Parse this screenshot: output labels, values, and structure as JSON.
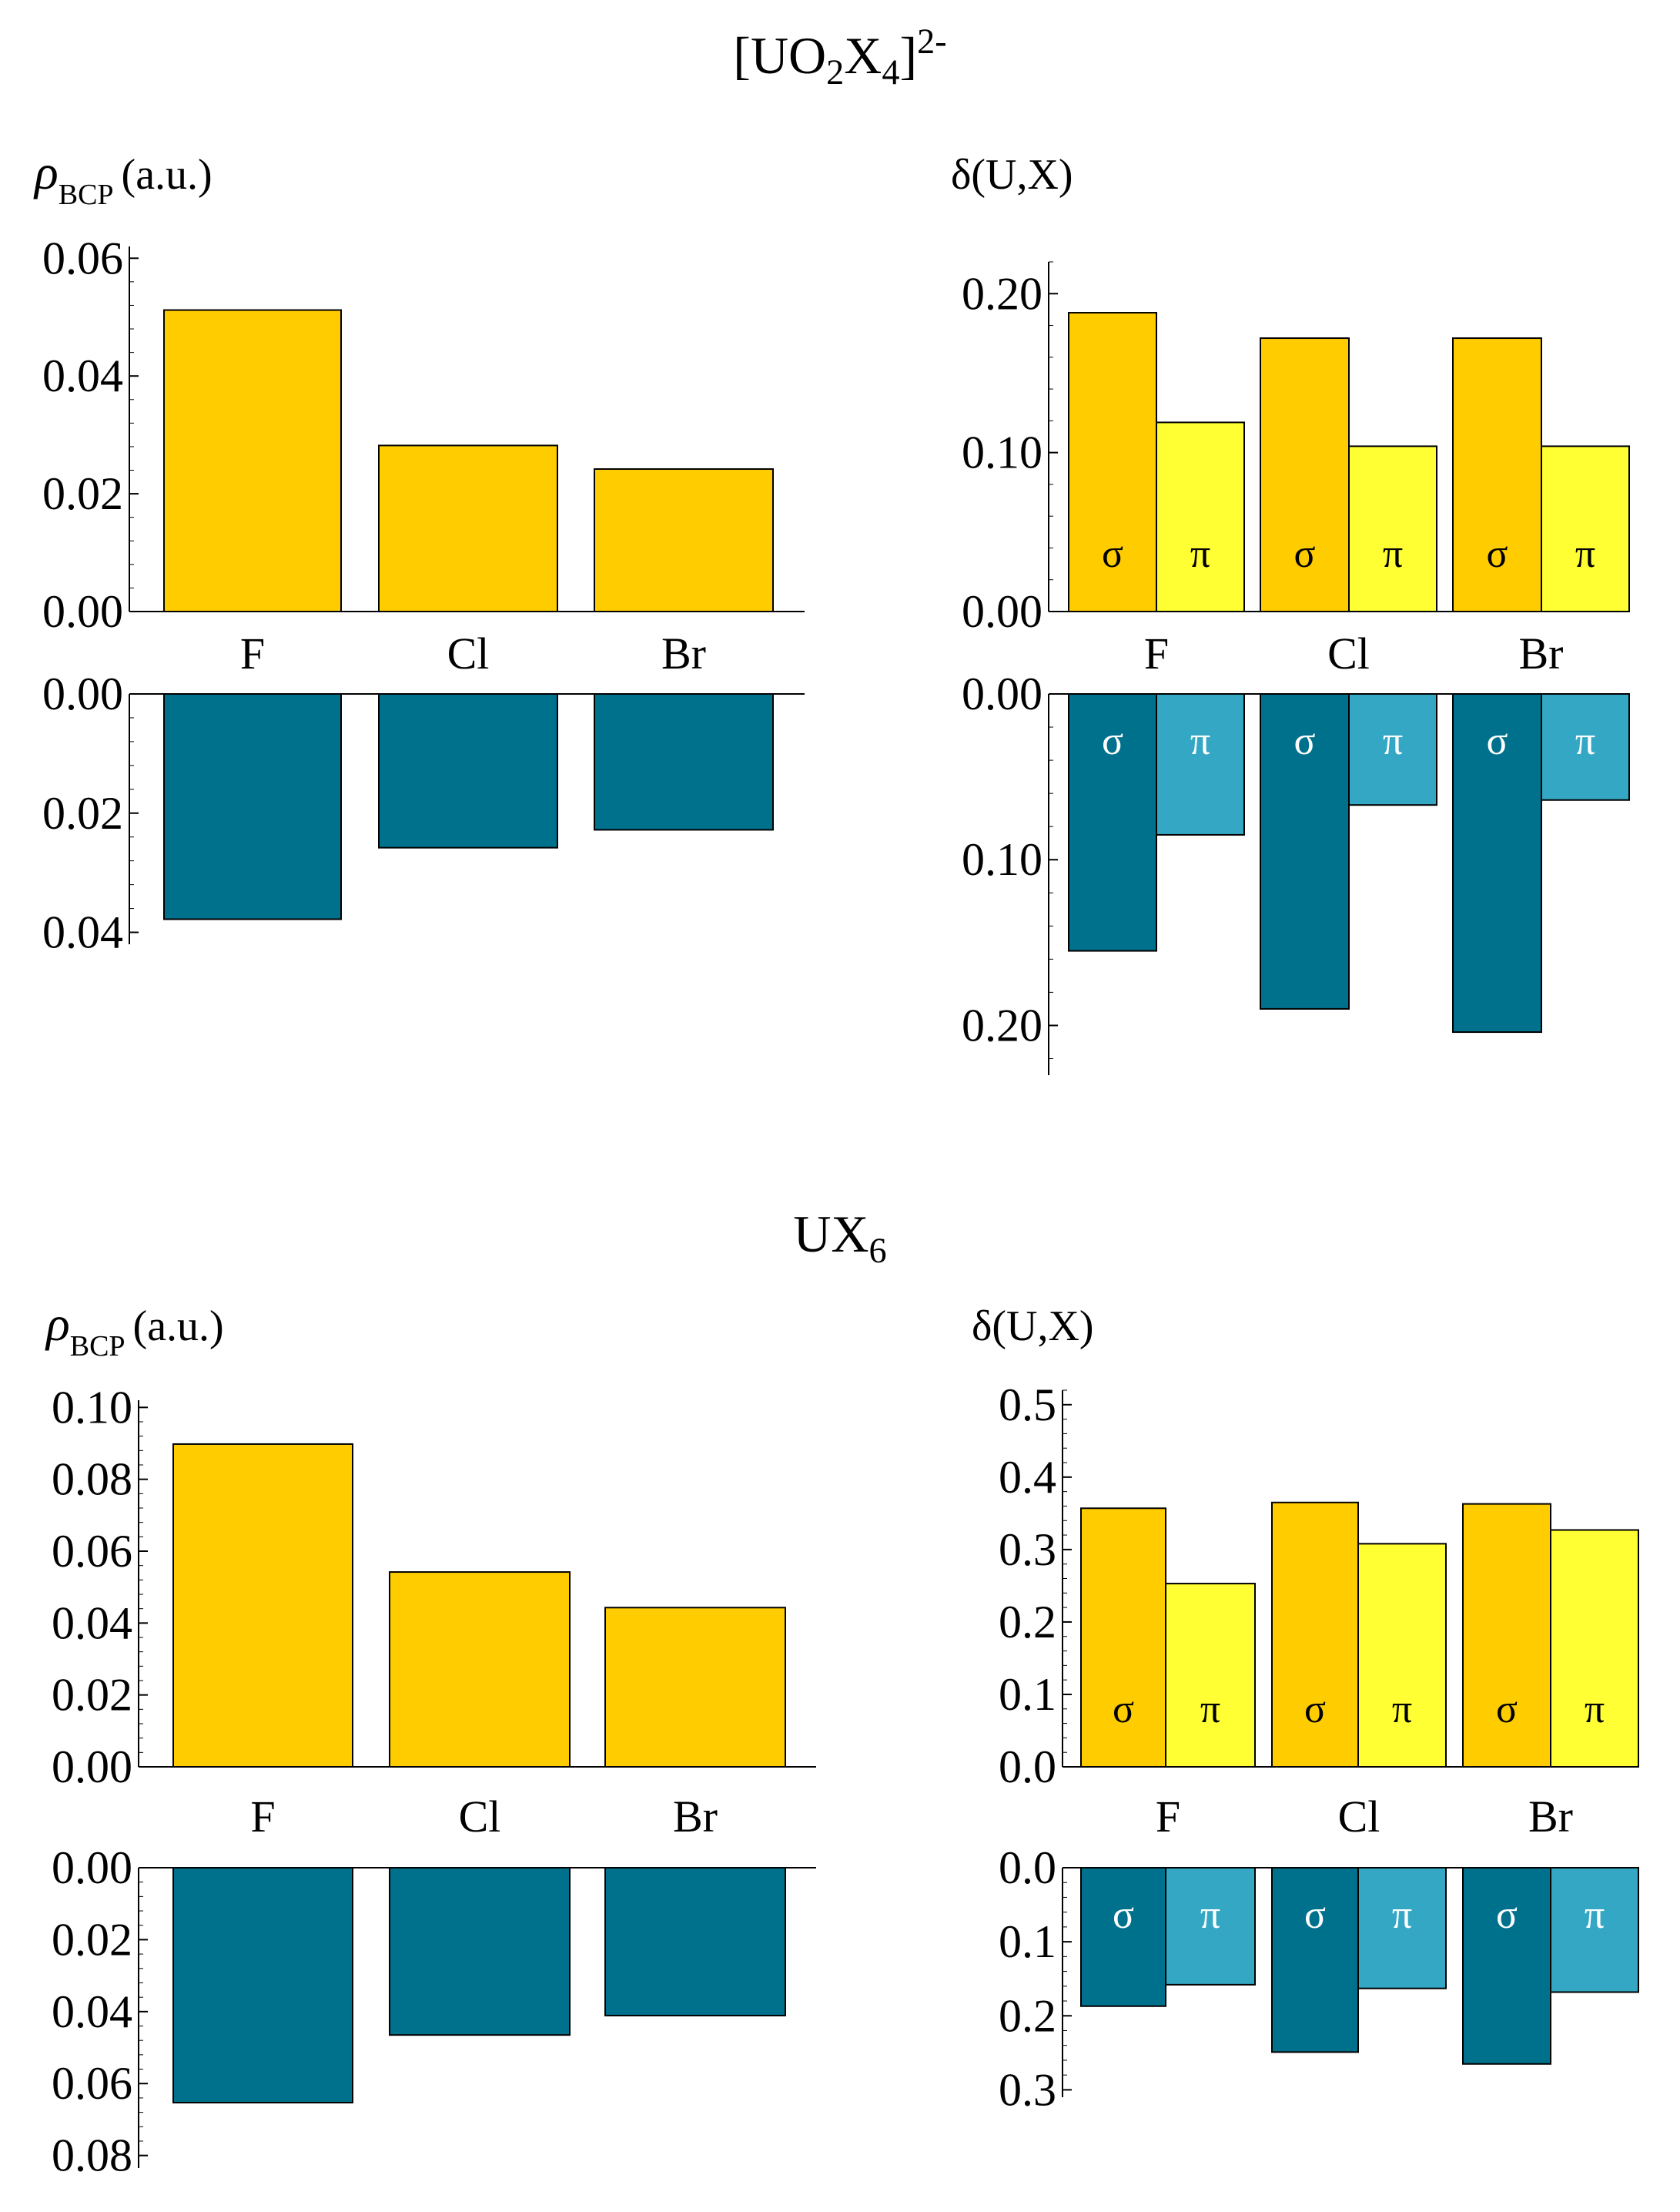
{
  "sections": [
    {
      "id": "uo2x4",
      "title": {
        "base": "[UO",
        "sub1": "2",
        "mid": "X",
        "sub2": "4",
        "close": "]",
        "sup": "2-"
      }
    },
    {
      "id": "ux6",
      "title": {
        "base": "UX",
        "sub1": "6"
      }
    }
  ],
  "axis_titles": {
    "rho": {
      "symbol": "ρ",
      "sub": "BCP",
      "unit": "(a.u.)"
    },
    "delta": {
      "text": "δ(U,X)"
    }
  },
  "colors": {
    "rho_top": "#FFCC00",
    "rho_bottom": "#00718D",
    "sigma_top": "#FFCC00",
    "pi_top": "#FFFF33",
    "sigma_bottom": "#00718D",
    "pi_bottom": "#33A7C3"
  },
  "chart_data": [
    {
      "type": "bar",
      "section": "uo2x4",
      "panel": "rho-top",
      "categories": [
        "F",
        "Cl",
        "Br"
      ],
      "values": [
        0.0512,
        0.0282,
        0.0242
      ],
      "ylim": [
        0,
        0.062
      ],
      "ticks": [
        "0.00",
        "0.02",
        "0.04",
        "0.06"
      ]
    },
    {
      "type": "bar",
      "section": "uo2x4",
      "panel": "rho-bottom",
      "inverted": true,
      "categories": [
        "F",
        "Cl",
        "Br"
      ],
      "values": [
        0.0378,
        0.0258,
        0.0228
      ],
      "ylim": [
        0,
        0.042
      ],
      "ticks": [
        "0.00",
        "0.02",
        "0.04"
      ]
    },
    {
      "type": "bar",
      "section": "uo2x4",
      "panel": "delta-top",
      "categories": [
        "F",
        "Cl",
        "Br"
      ],
      "series": [
        {
          "name": "σ",
          "values": [
            0.188,
            0.172,
            0.172
          ]
        },
        {
          "name": "π",
          "values": [
            0.119,
            0.104,
            0.104
          ]
        }
      ],
      "ylim": [
        0,
        0.22
      ],
      "ticks": [
        "0.00",
        "0.10",
        "0.20"
      ]
    },
    {
      "type": "bar",
      "section": "uo2x4",
      "panel": "delta-bottom",
      "inverted": true,
      "categories": [
        "F",
        "Cl",
        "Br"
      ],
      "series": [
        {
          "name": "σ",
          "values": [
            0.155,
            0.19,
            0.204
          ]
        },
        {
          "name": "π",
          "values": [
            0.085,
            0.067,
            0.064
          ]
        }
      ],
      "ylim": [
        0,
        0.23
      ],
      "ticks": [
        "0.00",
        "0.10",
        "0.20"
      ]
    },
    {
      "type": "bar",
      "section": "ux6",
      "panel": "rho-top",
      "categories": [
        "F",
        "Cl",
        "Br"
      ],
      "values": [
        0.0898,
        0.0542,
        0.0443
      ],
      "ylim": [
        0,
        0.102
      ],
      "ticks": [
        "0.00",
        "0.02",
        "0.04",
        "0.06",
        "0.08",
        "0.10"
      ]
    },
    {
      "type": "bar",
      "section": "ux6",
      "panel": "rho-bottom",
      "inverted": true,
      "categories": [
        "F",
        "Cl",
        "Br"
      ],
      "values": [
        0.0653,
        0.0465,
        0.0411
      ],
      "ylim": [
        0,
        0.0835
      ],
      "ticks": [
        "0.00",
        "0.02",
        "0.04",
        "0.06",
        "0.08"
      ]
    },
    {
      "type": "bar",
      "section": "ux6",
      "panel": "delta-top",
      "categories": [
        "F",
        "Cl",
        "Br"
      ],
      "series": [
        {
          "name": "σ",
          "values": [
            0.357,
            0.365,
            0.363
          ]
        },
        {
          "name": "π",
          "values": [
            0.253,
            0.308,
            0.327
          ]
        }
      ],
      "ylim": [
        0,
        0.52
      ],
      "ticks": [
        "0.0",
        "0.1",
        "0.2",
        "0.3",
        "0.4",
        "0.5"
      ]
    },
    {
      "type": "bar",
      "section": "ux6",
      "panel": "delta-bottom",
      "inverted": true,
      "categories": [
        "F",
        "Cl",
        "Br"
      ],
      "series": [
        {
          "name": "σ",
          "values": [
            0.187,
            0.249,
            0.265
          ]
        },
        {
          "name": "π",
          "values": [
            0.158,
            0.163,
            0.168
          ]
        }
      ],
      "ylim": [
        0,
        0.31
      ],
      "ticks": [
        "0.0",
        "0.1",
        "0.2",
        "0.3"
      ]
    }
  ]
}
